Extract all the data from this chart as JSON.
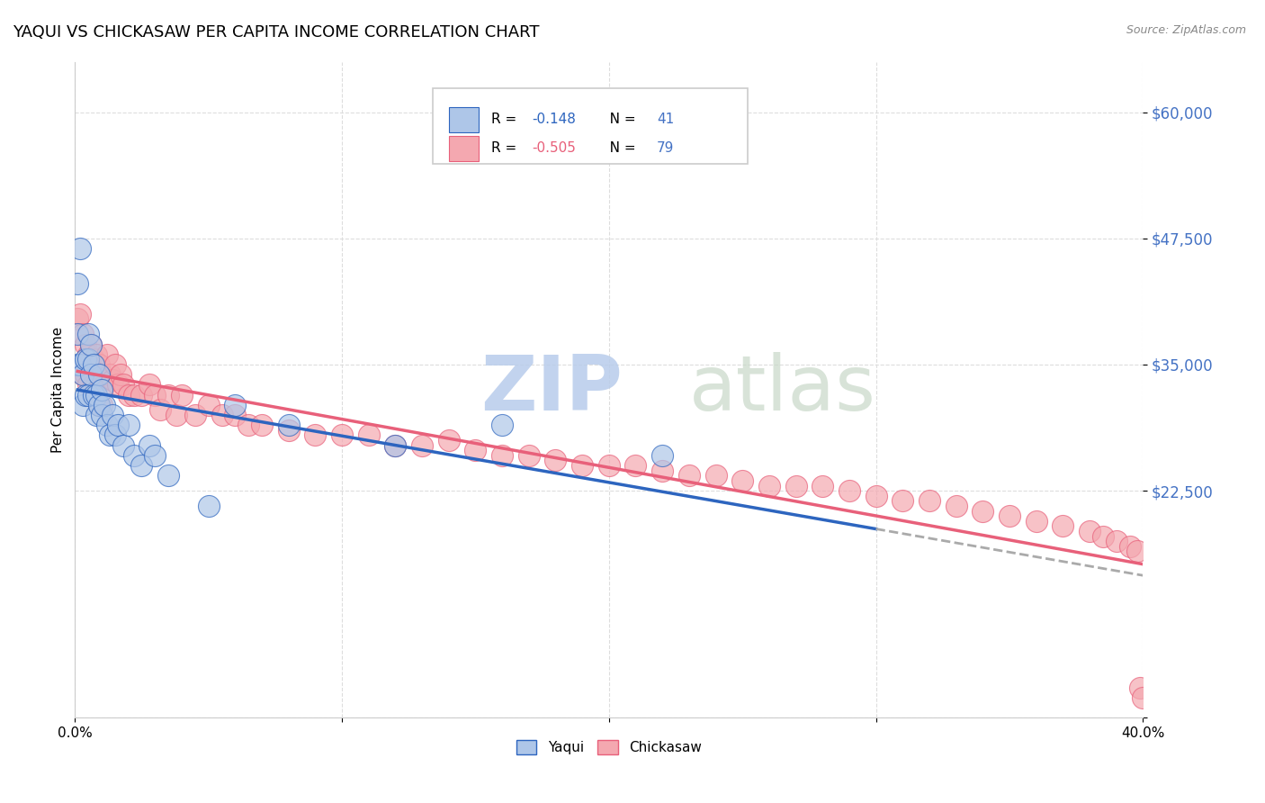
{
  "title": "YAQUI VS CHICKASAW PER CAPITA INCOME CORRELATION CHART",
  "source": "Source: ZipAtlas.com",
  "ylabel": "Per Capita Income",
  "xlim": [
    0.0,
    0.4
  ],
  "ylim": [
    0,
    65000
  ],
  "yticks": [
    0,
    22500,
    35000,
    47500,
    60000
  ],
  "ytick_labels": [
    "",
    "$22,500",
    "$35,000",
    "$47,500",
    "$60,000"
  ],
  "xticks": [
    0.0,
    0.1,
    0.2,
    0.3,
    0.4
  ],
  "xtick_labels": [
    "0.0%",
    "",
    "",
    "",
    "40.0%"
  ],
  "yaqui_color": "#aec6e8",
  "chickasaw_color": "#f4a8b0",
  "yaqui_line_color": "#2d65bf",
  "chickasaw_line_color": "#e8607a",
  "watermark_color": "#ccd9f0",
  "R_yaqui": -0.148,
  "N_yaqui": 41,
  "R_chickasaw": -0.505,
  "N_chickasaw": 79,
  "background_color": "#ffffff",
  "grid_color": "#dddddd",
  "title_fontsize": 13,
  "axis_label_color": "#4472c4",
  "yaqui_scatter_x": [
    0.001,
    0.001,
    0.001,
    0.002,
    0.002,
    0.003,
    0.003,
    0.004,
    0.004,
    0.005,
    0.005,
    0.005,
    0.006,
    0.006,
    0.007,
    0.007,
    0.008,
    0.008,
    0.009,
    0.009,
    0.01,
    0.01,
    0.011,
    0.012,
    0.013,
    0.014,
    0.015,
    0.016,
    0.018,
    0.02,
    0.022,
    0.025,
    0.028,
    0.03,
    0.035,
    0.05,
    0.06,
    0.08,
    0.12,
    0.16,
    0.22
  ],
  "yaqui_scatter_y": [
    43000,
    38000,
    35000,
    46500,
    35000,
    34000,
    31000,
    35500,
    32000,
    38000,
    35500,
    32000,
    37000,
    34000,
    35000,
    32000,
    32000,
    30000,
    34000,
    31000,
    32500,
    30000,
    31000,
    29000,
    28000,
    30000,
    28000,
    29000,
    27000,
    29000,
    26000,
    25000,
    27000,
    26000,
    24000,
    21000,
    31000,
    29000,
    27000,
    29000,
    26000
  ],
  "chickasaw_scatter_x": [
    0.001,
    0.002,
    0.002,
    0.003,
    0.003,
    0.004,
    0.004,
    0.005,
    0.005,
    0.006,
    0.006,
    0.007,
    0.007,
    0.008,
    0.008,
    0.009,
    0.009,
    0.01,
    0.01,
    0.011,
    0.012,
    0.013,
    0.014,
    0.015,
    0.016,
    0.017,
    0.018,
    0.02,
    0.022,
    0.025,
    0.028,
    0.03,
    0.032,
    0.035,
    0.038,
    0.04,
    0.045,
    0.05,
    0.055,
    0.06,
    0.065,
    0.07,
    0.08,
    0.09,
    0.1,
    0.11,
    0.12,
    0.13,
    0.14,
    0.15,
    0.16,
    0.17,
    0.18,
    0.19,
    0.2,
    0.21,
    0.22,
    0.23,
    0.24,
    0.25,
    0.26,
    0.27,
    0.28,
    0.29,
    0.3,
    0.31,
    0.32,
    0.33,
    0.34,
    0.35,
    0.36,
    0.37,
    0.38,
    0.385,
    0.39,
    0.395,
    0.398,
    0.399,
    0.4
  ],
  "chickasaw_scatter_y": [
    39500,
    40000,
    35000,
    38000,
    34000,
    37000,
    34000,
    36000,
    33000,
    37000,
    35000,
    35500,
    33000,
    36000,
    33000,
    35000,
    31000,
    34000,
    31000,
    33000,
    36000,
    34000,
    33500,
    35000,
    33000,
    34000,
    33000,
    32000,
    32000,
    32000,
    33000,
    32000,
    30500,
    32000,
    30000,
    32000,
    30000,
    31000,
    30000,
    30000,
    29000,
    29000,
    28500,
    28000,
    28000,
    28000,
    27000,
    27000,
    27500,
    26500,
    26000,
    26000,
    25500,
    25000,
    25000,
    25000,
    24500,
    24000,
    24000,
    23500,
    23000,
    23000,
    23000,
    22500,
    22000,
    21500,
    21500,
    21000,
    20500,
    20000,
    19500,
    19000,
    18500,
    18000,
    17500,
    17000,
    16500,
    3000,
    2000
  ]
}
